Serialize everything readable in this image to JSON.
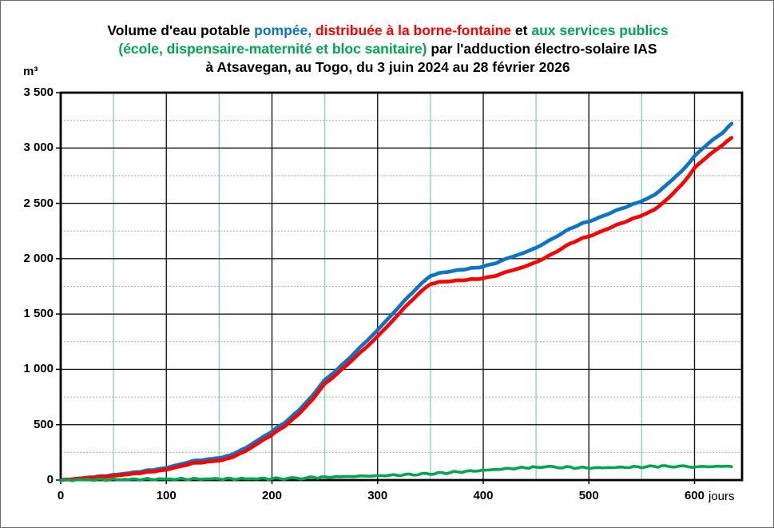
{
  "title": {
    "line1": [
      {
        "text": "Volume d'eau potable ",
        "color": "#000000"
      },
      {
        "text": "pompée,",
        "color": "#0B74C6"
      },
      {
        "text": " ",
        "color": "#000000"
      },
      {
        "text": "distribuée à la borne-fontaine",
        "color": "#FF0000"
      },
      {
        "text": " et ",
        "color": "#000000"
      },
      {
        "text": "aux services publics",
        "color": "#00A64F"
      }
    ],
    "line2": [
      {
        "text": "(école, dispensaire-maternité et bloc sanitaire)",
        "color": "#00A64F"
      },
      {
        "text": " par l'adduction électro-solaire IAS",
        "color": "#000000"
      }
    ],
    "line3": [
      {
        "text": "à Atsavegan, au Togo, du 3 juin 2024 au 28 février 2026",
        "color": "#000000"
      }
    ]
  },
  "chart_data": {
    "type": "line",
    "y_unit": "m³",
    "x_unit": "jours",
    "xlim": [
      0,
      645
    ],
    "ylim": [
      0,
      3500
    ],
    "x_major_ticks": [
      0,
      100,
      200,
      300,
      400,
      500,
      600
    ],
    "x_tick_labels": [
      "0",
      "100",
      "200",
      "300",
      "400",
      "500",
      "600"
    ],
    "x_minor_gridlines": [
      50,
      150,
      250,
      350,
      450,
      550
    ],
    "y_major_ticks": [
      0,
      500,
      1000,
      1500,
      2000,
      2500,
      3000,
      3500
    ],
    "y_tick_labels": [
      "0",
      "500",
      "1 000",
      "1 500",
      "2 000",
      "2 500",
      "3 000",
      "3 500"
    ],
    "y_minor_gridlines": [
      250,
      750,
      1250,
      1750,
      2250,
      2750,
      3250
    ],
    "grid": {
      "major_color": "#1a1a1a",
      "minor_h_color": "#ababab",
      "minor_v_color": "#7fd9a6",
      "border_color": "#000000"
    },
    "series": [
      {
        "id": "pompee",
        "name": "pompée",
        "color": "#0B74C6",
        "points": [
          [
            0,
            0
          ],
          [
            10,
            8
          ],
          [
            25,
            22
          ],
          [
            50,
            46
          ],
          [
            75,
            76
          ],
          [
            100,
            110
          ],
          [
            112,
            140
          ],
          [
            125,
            172
          ],
          [
            140,
            188
          ],
          [
            150,
            200
          ],
          [
            160,
            222
          ],
          [
            175,
            290
          ],
          [
            190,
            380
          ],
          [
            200,
            440
          ],
          [
            212,
            520
          ],
          [
            225,
            625
          ],
          [
            238,
            760
          ],
          [
            250,
            905
          ],
          [
            262,
            1000
          ],
          [
            275,
            1120
          ],
          [
            288,
            1240
          ],
          [
            300,
            1355
          ],
          [
            312,
            1480
          ],
          [
            325,
            1615
          ],
          [
            338,
            1745
          ],
          [
            350,
            1845
          ],
          [
            358,
            1868
          ],
          [
            370,
            1888
          ],
          [
            385,
            1908
          ],
          [
            400,
            1928
          ],
          [
            412,
            1962
          ],
          [
            425,
            2010
          ],
          [
            438,
            2052
          ],
          [
            450,
            2098
          ],
          [
            458,
            2140
          ],
          [
            470,
            2205
          ],
          [
            482,
            2270
          ],
          [
            494,
            2320
          ],
          [
            505,
            2352
          ],
          [
            518,
            2405
          ],
          [
            530,
            2450
          ],
          [
            542,
            2492
          ],
          [
            552,
            2528
          ],
          [
            562,
            2575
          ],
          [
            575,
            2680
          ],
          [
            588,
            2790
          ],
          [
            600,
            2925
          ],
          [
            608,
            3000
          ],
          [
            618,
            3080
          ],
          [
            627,
            3140
          ],
          [
            635,
            3220
          ]
        ]
      },
      {
        "id": "borne-fontaine",
        "name": "distribuée à la borne-fontaine",
        "color": "#FF0000",
        "points": [
          [
            0,
            0
          ],
          [
            10,
            7
          ],
          [
            25,
            19
          ],
          [
            50,
            38
          ],
          [
            75,
            64
          ],
          [
            100,
            93
          ],
          [
            112,
            122
          ],
          [
            125,
            152
          ],
          [
            140,
            166
          ],
          [
            150,
            176
          ],
          [
            160,
            198
          ],
          [
            175,
            262
          ],
          [
            190,
            352
          ],
          [
            200,
            410
          ],
          [
            212,
            488
          ],
          [
            225,
            592
          ],
          [
            238,
            725
          ],
          [
            250,
            870
          ],
          [
            262,
            962
          ],
          [
            275,
            1078
          ],
          [
            288,
            1188
          ],
          [
            300,
            1298
          ],
          [
            312,
            1418
          ],
          [
            325,
            1552
          ],
          [
            338,
            1678
          ],
          [
            350,
            1772
          ],
          [
            358,
            1788
          ],
          [
            370,
            1798
          ],
          [
            385,
            1810
          ],
          [
            400,
            1822
          ],
          [
            412,
            1848
          ],
          [
            425,
            1888
          ],
          [
            438,
            1925
          ],
          [
            450,
            1968
          ],
          [
            458,
            2005
          ],
          [
            470,
            2068
          ],
          [
            482,
            2135
          ],
          [
            494,
            2185
          ],
          [
            505,
            2218
          ],
          [
            518,
            2272
          ],
          [
            530,
            2318
          ],
          [
            542,
            2362
          ],
          [
            552,
            2398
          ],
          [
            562,
            2442
          ],
          [
            575,
            2545
          ],
          [
            588,
            2668
          ],
          [
            600,
            2818
          ],
          [
            608,
            2890
          ],
          [
            618,
            2968
          ],
          [
            627,
            3030
          ],
          [
            635,
            3092
          ]
        ]
      },
      {
        "id": "services-publics",
        "name": "aux services publics",
        "color": "#00A64F",
        "points": [
          [
            0,
            0
          ],
          [
            25,
            3
          ],
          [
            50,
            5
          ],
          [
            75,
            7
          ],
          [
            100,
            9
          ],
          [
            125,
            10
          ],
          [
            150,
            11
          ],
          [
            175,
            12
          ],
          [
            200,
            13
          ],
          [
            215,
            14
          ],
          [
            228,
            17
          ],
          [
            240,
            23
          ],
          [
            250,
            26
          ],
          [
            265,
            30
          ],
          [
            280,
            34
          ],
          [
            300,
            39
          ],
          [
            315,
            44
          ],
          [
            330,
            49
          ],
          [
            350,
            57
          ],
          [
            365,
            66
          ],
          [
            380,
            76
          ],
          [
            395,
            84
          ],
          [
            410,
            95
          ],
          [
            425,
            104
          ],
          [
            440,
            112
          ],
          [
            450,
            116
          ],
          [
            462,
            120
          ],
          [
            475,
            116
          ],
          [
            490,
            112
          ],
          [
            505,
            110
          ],
          [
            520,
            113
          ],
          [
            535,
            116
          ],
          [
            550,
            119
          ],
          [
            562,
            123
          ],
          [
            572,
            127
          ],
          [
            585,
            123
          ],
          [
            598,
            119
          ],
          [
            610,
            121
          ],
          [
            622,
            124
          ],
          [
            635,
            121
          ]
        ]
      }
    ]
  }
}
